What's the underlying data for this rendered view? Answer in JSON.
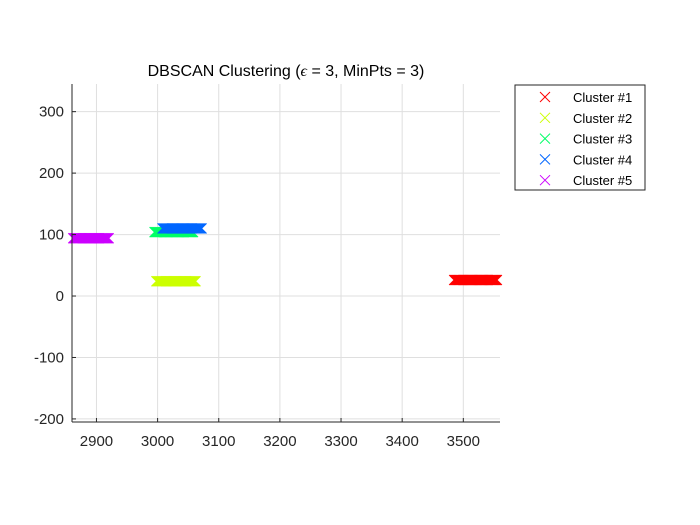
{
  "chart_data": {
    "type": "scatter",
    "title_prefix": "DBSCAN Clustering (",
    "title_symbol": "ϵ",
    "title_suffix": " = 3, MinPts = 3)",
    "xlabel": "",
    "ylabel": "",
    "xlim": [
      2860,
      3560
    ],
    "ylim": [
      -205,
      345
    ],
    "xticks": [
      2900,
      3000,
      3100,
      3200,
      3300,
      3400,
      3500
    ],
    "yticks": [
      -200,
      -100,
      0,
      100,
      200,
      300
    ],
    "grid": true,
    "legend_position": "outside-top-right",
    "marker": "x",
    "series": [
      {
        "name": "Cluster #1",
        "color": "#ff0000",
        "x_range": [
          3485,
          3555
        ],
        "y": 26
      },
      {
        "name": "Cluster #2",
        "color": "#ccff00",
        "x_range": [
          2998,
          3062
        ],
        "y": 24
      },
      {
        "name": "Cluster #3",
        "color": "#00ff66",
        "x_range": [
          2995,
          3058
        ],
        "y": 104
      },
      {
        "name": "Cluster #4",
        "color": "#0066ff",
        "x_range": [
          3008,
          3072
        ],
        "y": 110
      },
      {
        "name": "Cluster #5",
        "color": "#cc00ff",
        "x_range": [
          2862,
          2920
        ],
        "y": 94
      }
    ]
  }
}
